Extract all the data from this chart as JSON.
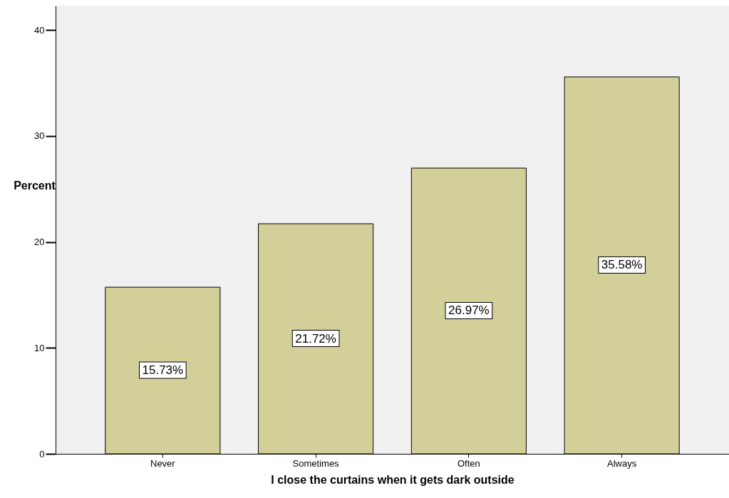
{
  "chart_data": {
    "type": "bar",
    "xlabel": "I close the curtains when it gets dark outside",
    "ylabel": "Percent",
    "categories": [
      "Never",
      "Sometimes",
      "Often",
      "Always"
    ],
    "values": [
      15.73,
      21.72,
      26.97,
      35.58
    ],
    "value_labels": [
      "15.73%",
      "21.72%",
      "26.97%",
      "35.58%"
    ],
    "color": "#d3cf98",
    "ylim": [
      0,
      42.3
    ],
    "yticks": [
      0,
      10,
      20,
      30,
      40
    ],
    "grid": false
  }
}
